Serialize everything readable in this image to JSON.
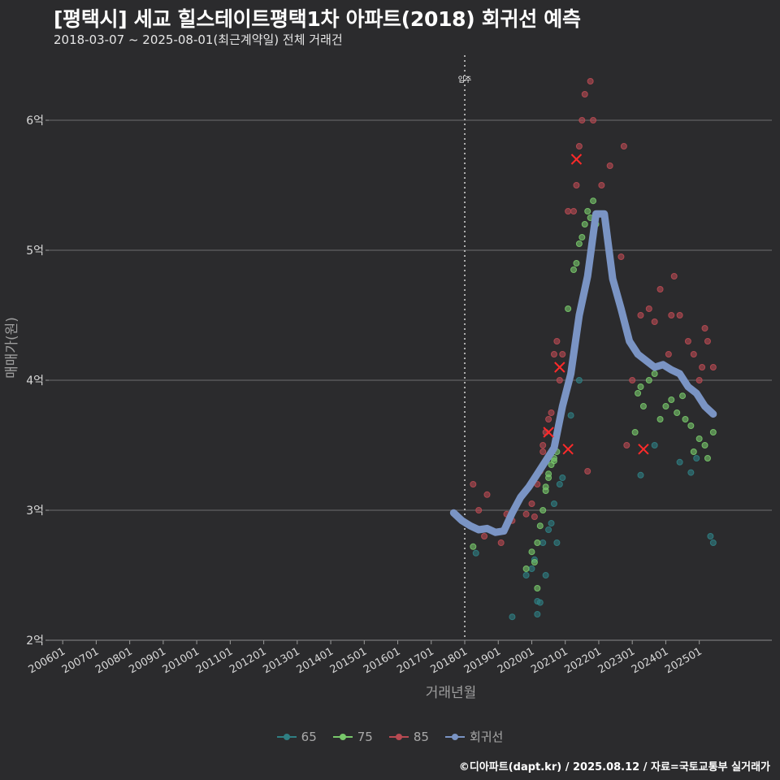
{
  "header": {
    "title": "[평택시] 세교 힐스테이트평택1차 아파트(2018) 회귀선 예측",
    "subtitle": "2018-03-07 ~ 2025-08-01(최근계약일) 전체 거래건"
  },
  "caption": "©디아파트(dapt.kr) / 2025.08.12 / 자료=국토교통부 실거래가",
  "colors": {
    "background": "#2b2b2d",
    "grid": "#6e6e6e",
    "s65": "#2f7f83",
    "s75": "#78c86a",
    "s85": "#b84a52",
    "regression": "#7a94c4",
    "marker": "#ff2a2a"
  },
  "chart_data": {
    "type": "scatter",
    "title": "[평택시] 세교 힐스테이트평택1차 아파트(2018) 회귀선 예측",
    "subtitle": "2018-03-07 ~ 2025-08-01(최근계약일) 전체 거래건",
    "xlabel": "거래년월",
    "ylabel": "매매가(원)",
    "x_is_date": true,
    "xlim": [
      "2005-08",
      "2027-03"
    ],
    "ylim": [
      2,
      6.5
    ],
    "y_unit": "억",
    "y_ticks": [
      2,
      3,
      4,
      5,
      6
    ],
    "y_tick_labels": [
      "2억",
      "3억",
      "4억",
      "5억",
      "6억"
    ],
    "x_tick_labels": [
      "200601",
      "200701",
      "200801",
      "200901",
      "201001",
      "201101",
      "201201",
      "201301",
      "201401",
      "201501",
      "201601",
      "201701",
      "201801",
      "201901",
      "202001",
      "202101",
      "202201",
      "202301",
      "202401",
      "202501"
    ],
    "vline": {
      "x": "2018-01",
      "label": "입주"
    },
    "legend": {
      "position": "bottom",
      "entries": [
        "65",
        "75",
        "85",
        "회귀선"
      ]
    },
    "grid": true,
    "series": [
      {
        "name": "65",
        "color": "#2f7f83",
        "points": [
          [
            "2018-05",
            2.67
          ],
          [
            "2019-06",
            2.18
          ],
          [
            "2019-11",
            2.5
          ],
          [
            "2020-01",
            2.55
          ],
          [
            "2020-02",
            2.62
          ],
          [
            "2020-03",
            2.3
          ],
          [
            "2020-03",
            2.2
          ],
          [
            "2020-04",
            2.29
          ],
          [
            "2020-05",
            2.75
          ],
          [
            "2020-06",
            2.5
          ],
          [
            "2020-07",
            2.85
          ],
          [
            "2020-08",
            2.9
          ],
          [
            "2020-09",
            3.05
          ],
          [
            "2020-10",
            2.75
          ],
          [
            "2020-11",
            3.2
          ],
          [
            "2020-12",
            3.25
          ],
          [
            "2021-03",
            3.73
          ],
          [
            "2021-06",
            4.0
          ],
          [
            "2023-04",
            3.27
          ],
          [
            "2023-09",
            3.5
          ],
          [
            "2024-06",
            3.37
          ],
          [
            "2024-10",
            3.29
          ],
          [
            "2024-12",
            3.4
          ],
          [
            "2025-05",
            2.8
          ],
          [
            "2025-06",
            2.75
          ]
        ]
      },
      {
        "name": "75",
        "color": "#78c86a",
        "points": [
          [
            "2018-04",
            2.72
          ],
          [
            "2019-11",
            2.55
          ],
          [
            "2020-01",
            2.68
          ],
          [
            "2020-02",
            2.6
          ],
          [
            "2020-03",
            2.75
          ],
          [
            "2020-03",
            2.4
          ],
          [
            "2020-04",
            2.88
          ],
          [
            "2020-05",
            3.0
          ],
          [
            "2020-06",
            3.18
          ],
          [
            "2020-06",
            3.15
          ],
          [
            "2020-07",
            3.28
          ],
          [
            "2020-07",
            3.25
          ],
          [
            "2020-08",
            3.35
          ],
          [
            "2020-09",
            3.4
          ],
          [
            "2020-09",
            3.38
          ],
          [
            "2020-10",
            3.45
          ],
          [
            "2021-02",
            4.55
          ],
          [
            "2021-04",
            4.85
          ],
          [
            "2021-05",
            4.9
          ],
          [
            "2021-06",
            5.05
          ],
          [
            "2021-07",
            5.1
          ],
          [
            "2021-08",
            5.2
          ],
          [
            "2021-09",
            5.3
          ],
          [
            "2021-10",
            5.25
          ],
          [
            "2021-11",
            5.38
          ],
          [
            "2021-12",
            5.2
          ],
          [
            "2023-02",
            3.6
          ],
          [
            "2023-03",
            3.9
          ],
          [
            "2023-04",
            3.95
          ],
          [
            "2023-05",
            3.8
          ],
          [
            "2023-07",
            4.0
          ],
          [
            "2023-09",
            4.05
          ],
          [
            "2023-11",
            3.7
          ],
          [
            "2024-01",
            3.8
          ],
          [
            "2024-03",
            3.85
          ],
          [
            "2024-05",
            3.75
          ],
          [
            "2024-07",
            3.88
          ],
          [
            "2024-08",
            3.7
          ],
          [
            "2024-10",
            3.65
          ],
          [
            "2024-11",
            3.45
          ],
          [
            "2025-01",
            3.55
          ],
          [
            "2025-03",
            3.5
          ],
          [
            "2025-04",
            3.4
          ],
          [
            "2025-06",
            3.6
          ]
        ]
      },
      {
        "name": "85",
        "color": "#b84a52",
        "points": [
          [
            "2018-04",
            3.2
          ],
          [
            "2018-06",
            3.0
          ],
          [
            "2018-08",
            2.8
          ],
          [
            "2018-09",
            3.12
          ],
          [
            "2019-02",
            2.75
          ],
          [
            "2019-04",
            2.97
          ],
          [
            "2019-06",
            2.92
          ],
          [
            "2019-09",
            3.1
          ],
          [
            "2019-11",
            2.97
          ],
          [
            "2020-01",
            3.05
          ],
          [
            "2020-02",
            2.95
          ],
          [
            "2020-03",
            3.2
          ],
          [
            "2020-04",
            3.3
          ],
          [
            "2020-05",
            3.45
          ],
          [
            "2020-05",
            3.5
          ],
          [
            "2020-06",
            3.6
          ],
          [
            "2020-07",
            3.7
          ],
          [
            "2020-08",
            3.75
          ],
          [
            "2020-09",
            4.2
          ],
          [
            "2020-10",
            4.3
          ],
          [
            "2020-11",
            4.0
          ],
          [
            "2020-12",
            4.2
          ],
          [
            "2021-02",
            5.3
          ],
          [
            "2021-04",
            5.3
          ],
          [
            "2021-05",
            5.5
          ],
          [
            "2021-06",
            5.8
          ],
          [
            "2021-07",
            6.0
          ],
          [
            "2021-08",
            6.2
          ],
          [
            "2021-10",
            6.3
          ],
          [
            "2021-11",
            6.0
          ],
          [
            "2021-09",
            3.3
          ],
          [
            "2022-02",
            5.5
          ],
          [
            "2022-05",
            5.65
          ],
          [
            "2022-09",
            4.95
          ],
          [
            "2022-10",
            5.8
          ],
          [
            "2022-11",
            3.5
          ],
          [
            "2023-01",
            4.0
          ],
          [
            "2023-04",
            4.5
          ],
          [
            "2023-07",
            4.55
          ],
          [
            "2023-09",
            4.45
          ],
          [
            "2023-11",
            4.7
          ],
          [
            "2024-02",
            4.2
          ],
          [
            "2024-03",
            4.5
          ],
          [
            "2024-04",
            4.8
          ],
          [
            "2024-06",
            4.5
          ],
          [
            "2024-09",
            4.3
          ],
          [
            "2024-11",
            4.2
          ],
          [
            "2025-01",
            4.0
          ],
          [
            "2025-02",
            4.1
          ],
          [
            "2025-03",
            4.4
          ],
          [
            "2025-04",
            4.3
          ],
          [
            "2025-06",
            4.1
          ]
        ]
      },
      {
        "name": "회귀선",
        "color": "#7a94c4",
        "points": [
          [
            "2017-09",
            2.98
          ],
          [
            "2017-12",
            2.92
          ],
          [
            "2018-03",
            2.88
          ],
          [
            "2018-06",
            2.85
          ],
          [
            "2018-09",
            2.86
          ],
          [
            "2018-12",
            2.83
          ],
          [
            "2019-03",
            2.84
          ],
          [
            "2019-06",
            2.98
          ],
          [
            "2019-09",
            3.1
          ],
          [
            "2019-12",
            3.18
          ],
          [
            "2020-03",
            3.28
          ],
          [
            "2020-06",
            3.38
          ],
          [
            "2020-09",
            3.48
          ],
          [
            "2020-12",
            3.8
          ],
          [
            "2021-03",
            4.05
          ],
          [
            "2021-06",
            4.5
          ],
          [
            "2021-09",
            4.8
          ],
          [
            "2021-12",
            5.28
          ],
          [
            "2022-03",
            5.28
          ],
          [
            "2022-06",
            4.78
          ],
          [
            "2022-09",
            4.55
          ],
          [
            "2022-12",
            4.3
          ],
          [
            "2023-03",
            4.2
          ],
          [
            "2023-06",
            4.15
          ],
          [
            "2023-09",
            4.1
          ],
          [
            "2023-12",
            4.12
          ],
          [
            "2024-03",
            4.08
          ],
          [
            "2024-06",
            4.05
          ],
          [
            "2024-09",
            3.95
          ],
          [
            "2024-12",
            3.9
          ],
          [
            "2025-03",
            3.8
          ],
          [
            "2025-06",
            3.74
          ]
        ]
      }
    ],
    "highlighted": [
      [
        "2020-07",
        3.6
      ],
      [
        "2020-11",
        4.1
      ],
      [
        "2021-02",
        3.47
      ],
      [
        "2021-05",
        5.7
      ],
      [
        "2023-05",
        3.47
      ]
    ]
  }
}
